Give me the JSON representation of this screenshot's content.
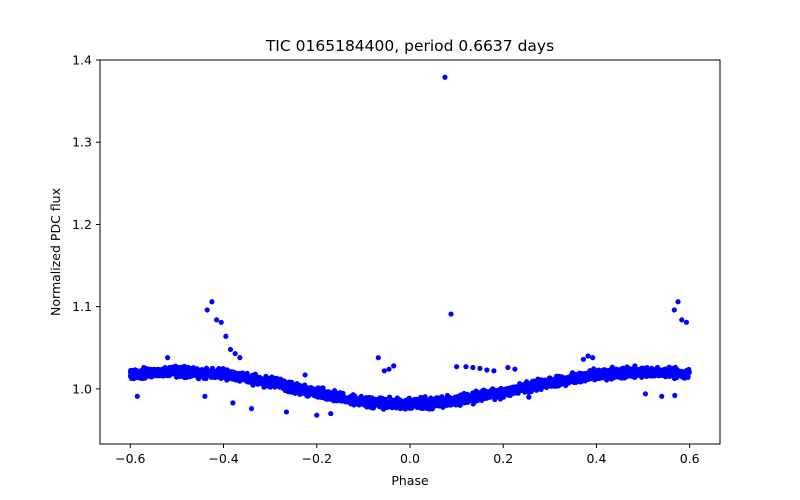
{
  "chart_data": {
    "type": "scatter",
    "title": "TIC 0165184400, period 0.6637 days",
    "xlabel": "Phase",
    "ylabel": "Normalized PDC flux",
    "xlim": [
      -0.665,
      0.665
    ],
    "ylim": [
      0.933,
      1.4
    ],
    "xticks": [
      -0.6,
      -0.4,
      -0.2,
      0.0,
      0.2,
      0.4,
      0.6
    ],
    "xtick_labels": [
      "−0.6",
      "−0.4",
      "−0.2",
      "0.0",
      "0.2",
      "0.4",
      "0.6"
    ],
    "yticks": [
      1.0,
      1.1,
      1.2,
      1.3,
      1.4
    ],
    "ytick_labels": [
      "1.0",
      "1.1",
      "1.2",
      "1.3",
      "1.4"
    ],
    "grid": false,
    "marker_color": "#0000ff",
    "series": [
      {
        "name": "trend",
        "description": "dense band of points following a sinusoid-like light curve",
        "x_range": [
          -0.6,
          0.6
        ],
        "trend_points": [
          [
            -0.6,
            1.018
          ],
          [
            -0.5,
            1.021
          ],
          [
            -0.4,
            1.018
          ],
          [
            -0.3,
            1.008
          ],
          [
            -0.2,
            0.995
          ],
          [
            -0.1,
            0.984
          ],
          [
            0.0,
            0.981
          ],
          [
            0.1,
            0.986
          ],
          [
            0.2,
            0.996
          ],
          [
            0.3,
            1.008
          ],
          [
            0.4,
            1.018
          ],
          [
            0.5,
            1.021
          ],
          [
            0.6,
            1.018
          ]
        ],
        "scatter_amplitude": 0.009
      },
      {
        "name": "outliers",
        "points": [
          [
            0.075,
            1.379
          ],
          [
            0.088,
            1.091
          ],
          [
            -0.425,
            1.106
          ],
          [
            -0.435,
            1.096
          ],
          [
            -0.415,
            1.084
          ],
          [
            -0.405,
            1.081
          ],
          [
            -0.395,
            1.064
          ],
          [
            -0.385,
            1.048
          ],
          [
            -0.375,
            1.043
          ],
          [
            -0.365,
            1.038
          ],
          [
            0.575,
            1.106
          ],
          [
            0.567,
            1.096
          ],
          [
            0.583,
            1.084
          ],
          [
            0.593,
            1.081
          ],
          [
            -0.068,
            1.038
          ],
          [
            -0.055,
            1.022
          ],
          [
            -0.045,
            1.024
          ],
          [
            -0.035,
            1.028
          ],
          [
            0.1,
            1.027
          ],
          [
            0.12,
            1.027
          ],
          [
            0.135,
            1.026
          ],
          [
            0.15,
            1.025
          ],
          [
            0.165,
            1.023
          ],
          [
            0.18,
            1.022
          ],
          [
            0.21,
            1.026
          ],
          [
            0.225,
            1.024
          ],
          [
            -0.52,
            1.038
          ],
          [
            0.372,
            1.036
          ],
          [
            0.382,
            1.04
          ],
          [
            0.392,
            1.038
          ],
          [
            -0.585,
            0.991
          ],
          [
            -0.44,
            0.991
          ],
          [
            -0.38,
            0.983
          ],
          [
            -0.34,
            0.976
          ],
          [
            -0.035,
            0.985
          ],
          [
            0.568,
            0.992
          ],
          [
            0.54,
            0.991
          ],
          [
            0.505,
            0.994
          ],
          [
            -0.2,
            0.968
          ],
          [
            -0.17,
            0.97
          ],
          [
            -0.265,
            0.972
          ],
          [
            0.255,
            0.99
          ],
          [
            0.315,
            1.015
          ],
          [
            -0.225,
            1.017
          ]
        ]
      }
    ]
  }
}
